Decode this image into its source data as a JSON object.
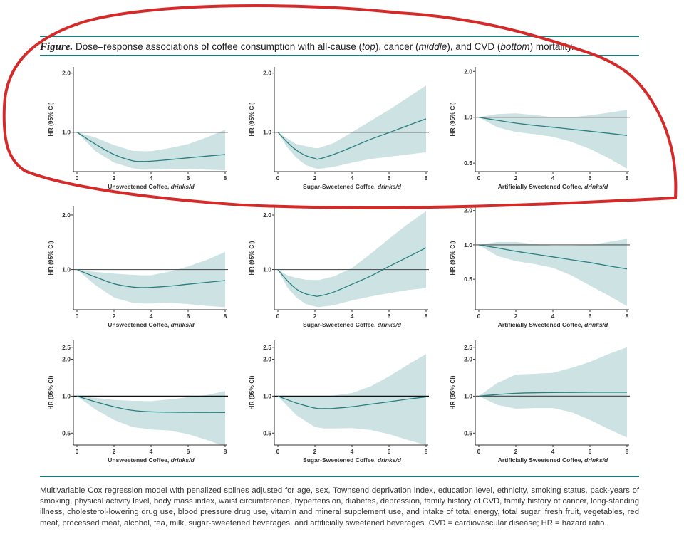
{
  "caption": {
    "figure_label": "Figure.",
    "parts": [
      {
        "text": " Dose–response associations of coffee consumption with all-cause (",
        "italic": false
      },
      {
        "text": "top",
        "italic": true
      },
      {
        "text": "), cancer (",
        "italic": false
      },
      {
        "text": "middle",
        "italic": true
      },
      {
        "text": "), and CVD (",
        "italic": false
      },
      {
        "text": "bottom",
        "italic": true
      },
      {
        "text": ") mortality.",
        "italic": false
      }
    ]
  },
  "footnote": "Multivariable Cox regression model with penalized splines adjusted for age, sex, Townsend deprivation index, education level, ethnicity, smoking status, pack-years of smoking, physical activity level, body mass index, waist circumference, hypertension, diabetes, depression, family history of CVD, family history of cancer, long-standing illness, cholesterol-lowering drug use, blood pressure drug use, vitamin and mineral supplement use, and intake of total energy, total sugar, fresh fruit, vegetables, red meat, processed meat, alcohol, tea, milk, sugar-sweetened beverages, and artificially sweetened beverages. CVD = cardiovascular disease; HR = hazard ratio.",
  "colors": {
    "rule": "#1f7a78",
    "line": "#2a7f80",
    "band": "#cde2e3",
    "axis": "#222222",
    "annotation": "#d42a2a"
  },
  "chart_data": [
    {
      "type": "line",
      "row": "all-cause",
      "title": "",
      "xlabel": "Unsweetened Coffee,",
      "xlabel_italic": "drinks/d",
      "ylabel": "HR (95% CI)",
      "yscale": "log",
      "ylim": [
        0.63,
        2.08
      ],
      "yticks": [
        "2.0",
        "1.0"
      ],
      "ytick_values": [
        2.0,
        1.0
      ],
      "xticks": [
        "0",
        "2",
        "4",
        "6",
        "8"
      ],
      "xlim": [
        0,
        8
      ],
      "reference": 1.0,
      "x": [
        0,
        1,
        2,
        3,
        3.5,
        4,
        5,
        6,
        7,
        8
      ],
      "hr": [
        1.0,
        0.87,
        0.77,
        0.715,
        0.71,
        0.712,
        0.725,
        0.74,
        0.755,
        0.77
      ],
      "lower": [
        1.0,
        0.8,
        0.7,
        0.655,
        0.645,
        0.645,
        0.65,
        0.65,
        0.645,
        0.64
      ],
      "upper": [
        1.0,
        0.94,
        0.86,
        0.805,
        0.8,
        0.8,
        0.83,
        0.87,
        0.94,
        1.03
      ]
    },
    {
      "type": "line",
      "row": "all-cause",
      "title": "",
      "xlabel": "Sugar-Sweetened Coffee,",
      "xlabel_italic": "drinks/d",
      "ylabel": "HR (95% CI)",
      "yscale": "log",
      "ylim": [
        0.63,
        2.08
      ],
      "yticks": [
        "2.0",
        "1.0"
      ],
      "ytick_values": [
        2.0,
        1.0
      ],
      "xticks": [
        "0",
        "2",
        "4",
        "6",
        "8"
      ],
      "xlim": [
        0,
        8
      ],
      "reference": 1.0,
      "x": [
        0,
        0.5,
        1,
        1.5,
        2,
        2.2,
        3,
        4,
        5,
        6,
        7,
        8
      ],
      "hr": [
        1.0,
        0.89,
        0.81,
        0.76,
        0.735,
        0.73,
        0.77,
        0.84,
        0.92,
        0.995,
        1.08,
        1.17
      ],
      "lower": [
        1.0,
        0.84,
        0.74,
        0.68,
        0.655,
        0.65,
        0.665,
        0.7,
        0.73,
        0.75,
        0.77,
        0.79
      ],
      "upper": [
        1.0,
        0.93,
        0.87,
        0.85,
        0.83,
        0.83,
        0.88,
        1.0,
        1.14,
        1.3,
        1.5,
        1.73
      ]
    },
    {
      "type": "line",
      "row": "all-cause",
      "title": "",
      "xlabel": "Artificially Sweetened Coffee,",
      "xlabel_italic": "drinks/d",
      "ylabel": "HR (95% CI)",
      "yscale": "log",
      "ylim": [
        0.44,
        2.05
      ],
      "yticks": [
        "2.0",
        "1.0",
        "0.5"
      ],
      "ytick_values": [
        2.0,
        1.0,
        0.5
      ],
      "xticks": [
        "0",
        "2",
        "4",
        "6",
        "8"
      ],
      "xlim": [
        0,
        8
      ],
      "reference": 1.0,
      "x": [
        0,
        1,
        2,
        3,
        4,
        5,
        6,
        7,
        8
      ],
      "hr": [
        1.0,
        0.955,
        0.915,
        0.885,
        0.86,
        0.835,
        0.81,
        0.785,
        0.76
      ],
      "lower": [
        1.0,
        0.86,
        0.8,
        0.775,
        0.745,
        0.69,
        0.62,
        0.54,
        0.46
      ],
      "upper": [
        1.0,
        1.05,
        1.06,
        1.035,
        1.0,
        1.0,
        1.03,
        1.07,
        1.12
      ]
    },
    {
      "type": "line",
      "row": "cancer",
      "title": "",
      "xlabel": "Unsweetened Coffee,",
      "xlabel_italic": "drinks/d",
      "ylabel": "HR (95% CI)",
      "yscale": "log",
      "ylim": [
        0.6,
        2.15
      ],
      "yticks": [
        "2.0",
        "1.0"
      ],
      "ytick_values": [
        2.0,
        1.0
      ],
      "xticks": [
        "0",
        "2",
        "4",
        "6",
        "8"
      ],
      "xlim": [
        0,
        8
      ],
      "reference": 1.0,
      "x": [
        0,
        1,
        2,
        3,
        3.5,
        4,
        5,
        6,
        7,
        8
      ],
      "hr": [
        1.0,
        0.91,
        0.835,
        0.8,
        0.795,
        0.797,
        0.81,
        0.83,
        0.85,
        0.87
      ],
      "lower": [
        1.0,
        0.82,
        0.7,
        0.655,
        0.65,
        0.65,
        0.655,
        0.645,
        0.63,
        0.62
      ],
      "upper": [
        1.0,
        0.97,
        0.95,
        0.935,
        0.93,
        0.93,
        0.975,
        1.04,
        1.13,
        1.25
      ]
    },
    {
      "type": "line",
      "row": "cancer",
      "title": "",
      "xlabel": "Sugar-Sweetened Coffee,",
      "xlabel_italic": "drinks/d",
      "ylabel": "HR (95% CI)",
      "yscale": "log",
      "ylim": [
        0.6,
        2.15
      ],
      "yticks": [
        "2.0",
        "1.0"
      ],
      "ytick_values": [
        2.0,
        1.0
      ],
      "xticks": [
        "0",
        "2",
        "4",
        "6",
        "8"
      ],
      "xlim": [
        0,
        8
      ],
      "reference": 1.0,
      "x": [
        0,
        0.5,
        1,
        1.5,
        2,
        2.2,
        3,
        4,
        5,
        6,
        7,
        8
      ],
      "hr": [
        1.0,
        0.87,
        0.78,
        0.735,
        0.715,
        0.713,
        0.75,
        0.83,
        0.92,
        1.04,
        1.17,
        1.32
      ],
      "lower": [
        1.0,
        0.8,
        0.7,
        0.645,
        0.625,
        0.62,
        0.635,
        0.675,
        0.71,
        0.74,
        0.77,
        0.79
      ],
      "upper": [
        1.0,
        0.93,
        0.9,
        0.88,
        0.875,
        0.875,
        0.915,
        1.02,
        1.22,
        1.48,
        1.78,
        2.1
      ]
    },
    {
      "type": "line",
      "row": "cancer",
      "title": "",
      "xlabel": "Artificially Sweetened Coffee,",
      "xlabel_italic": "drinks/d",
      "ylabel": "HR (95% CI)",
      "yscale": "log",
      "ylim": [
        0.27,
        2.05
      ],
      "yticks": [
        "2.0",
        "1.0",
        "0.5"
      ],
      "ytick_values": [
        2.0,
        1.0,
        0.5
      ],
      "xticks": [
        "0",
        "2",
        "4",
        "6",
        "8"
      ],
      "xlim": [
        0,
        8
      ],
      "reference": 1.0,
      "x": [
        0,
        1,
        2,
        3,
        4,
        5,
        6,
        7,
        8
      ],
      "hr": [
        1.0,
        0.94,
        0.88,
        0.83,
        0.785,
        0.74,
        0.7,
        0.655,
        0.615
      ],
      "lower": [
        1.0,
        0.8,
        0.72,
        0.68,
        0.63,
        0.54,
        0.44,
        0.36,
        0.29
      ],
      "upper": [
        1.0,
        1.06,
        1.06,
        1.02,
        0.98,
        0.985,
        1.0,
        1.06,
        1.13
      ]
    },
    {
      "type": "line",
      "row": "cvd",
      "title": "",
      "xlabel": "Unsweetened Coffee,",
      "xlabel_italic": "drinks/d",
      "ylabel": "HR (95% CI)",
      "yscale": "log",
      "ylim": [
        0.4,
        2.7
      ],
      "yticks": [
        "2.5",
        "2.0",
        "1.0",
        "0.5"
      ],
      "ytick_values": [
        2.5,
        2.0,
        1.0,
        0.5
      ],
      "xticks": [
        "0",
        "2",
        "4",
        "6",
        "8"
      ],
      "xlim": [
        0,
        8
      ],
      "reference": 1.0,
      "x": [
        0,
        1,
        2,
        3,
        4,
        5,
        6,
        7,
        8
      ],
      "hr": [
        1.0,
        0.9,
        0.82,
        0.765,
        0.745,
        0.74,
        0.738,
        0.737,
        0.736
      ],
      "lower": [
        1.0,
        0.78,
        0.64,
        0.56,
        0.535,
        0.525,
        0.49,
        0.44,
        0.39
      ],
      "upper": [
        1.0,
        0.97,
        0.93,
        0.915,
        0.91,
        0.94,
        0.98,
        1.02,
        1.1
      ]
    },
    {
      "type": "line",
      "row": "cvd",
      "title": "",
      "xlabel": "Sugar-Sweetened Coffee,",
      "xlabel_italic": "drinks/d",
      "ylabel": "HR (95% CI)",
      "yscale": "log",
      "ylim": [
        0.4,
        2.7
      ],
      "yticks": [
        "2.5",
        "2.0",
        "1.0",
        "0.5"
      ],
      "ytick_values": [
        2.5,
        2.0,
        1.0,
        0.5
      ],
      "xticks": [
        "0",
        "2",
        "4",
        "6",
        "8"
      ],
      "xlim": [
        0,
        8
      ],
      "reference": 1.0,
      "x": [
        0,
        1,
        2,
        2.5,
        3,
        4,
        5,
        6,
        7,
        8
      ],
      "hr": [
        1.0,
        0.88,
        0.8,
        0.792,
        0.795,
        0.82,
        0.86,
        0.9,
        0.945,
        0.985
      ],
      "lower": [
        1.0,
        0.7,
        0.56,
        0.545,
        0.545,
        0.55,
        0.53,
        0.49,
        0.44,
        0.4
      ],
      "upper": [
        1.0,
        1.0,
        1.0,
        1.0,
        1.01,
        1.06,
        1.2,
        1.45,
        1.8,
        2.2
      ]
    },
    {
      "type": "line",
      "row": "cvd",
      "title": "",
      "xlabel": "Artificially Sweetened Coffee,",
      "xlabel_italic": "drinks/d",
      "ylabel": "HR (95% CI)",
      "yscale": "log",
      "ylim": [
        0.4,
        2.7
      ],
      "yticks": [
        "2.5",
        "2.0",
        "1.0",
        "0.5"
      ],
      "ytick_values": [
        2.5,
        2.0,
        1.0,
        0.5
      ],
      "xticks": [
        "0",
        "2",
        "4",
        "6",
        "8"
      ],
      "xlim": [
        0,
        8
      ],
      "reference": 1.0,
      "x": [
        0,
        1,
        2,
        3,
        4,
        5,
        6,
        7,
        8
      ],
      "hr": [
        1.0,
        1.03,
        1.055,
        1.065,
        1.07,
        1.072,
        1.074,
        1.075,
        1.075
      ],
      "lower": [
        1.0,
        0.85,
        0.79,
        0.8,
        0.8,
        0.74,
        0.64,
        0.54,
        0.46
      ],
      "upper": [
        1.0,
        1.28,
        1.5,
        1.52,
        1.55,
        1.7,
        1.9,
        2.2,
        2.5
      ]
    }
  ]
}
